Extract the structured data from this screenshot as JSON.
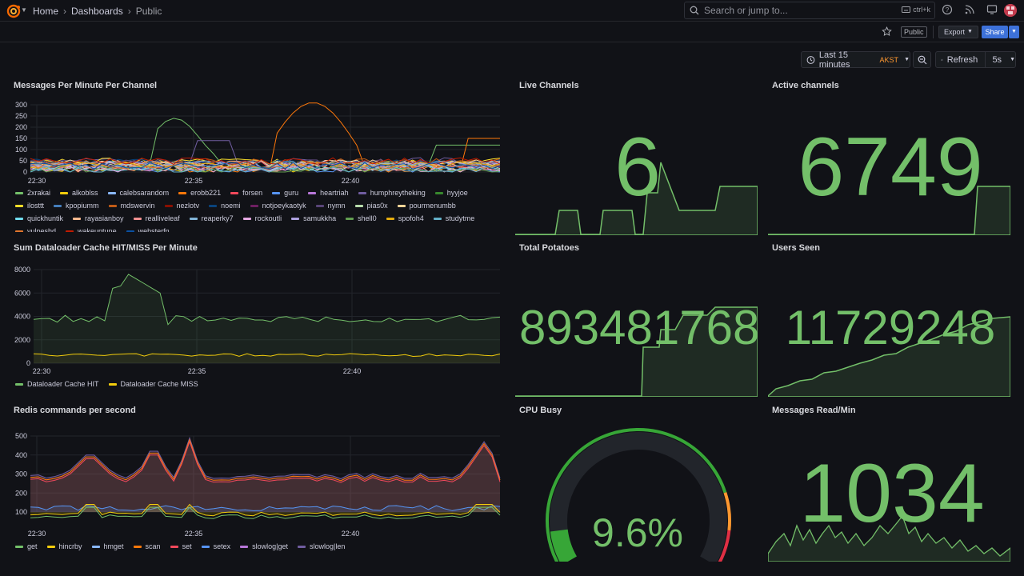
{
  "breadcrumb": {
    "home": "Home",
    "dashboards": "Dashboards",
    "current": "Public"
  },
  "search": {
    "placeholder": "Search or jump to...",
    "shortcut": "ctrl+k"
  },
  "topbar_icons": [
    "help-icon",
    "news-icon",
    "kiosk-icon"
  ],
  "actions": {
    "public_badge": "Public",
    "export_label": "Export",
    "share_label": "Share"
  },
  "timepicker": {
    "range": "Last 15 minutes",
    "timezone": "AKST",
    "refresh_label": "Refresh",
    "refresh_interval": "5s"
  },
  "colors": {
    "accent": "#3d71d9",
    "stat_green": "#73bf69",
    "bg": "#111217"
  },
  "panels": {
    "messages_per_minute": {
      "title": "Messages Per Minute Per Channel",
      "y_ticks": [
        "300",
        "250",
        "200",
        "150",
        "100",
        "50",
        "0"
      ],
      "x_ticks": [
        "22:30",
        "22:35",
        "22:40"
      ],
      "legend": [
        {
          "name": "2xrakai",
          "color": "#73bf69"
        },
        {
          "name": "alkoblss",
          "color": "#f2cc0c"
        },
        {
          "name": "calebsarandom",
          "color": "#8ab8ff"
        },
        {
          "name": "erobb221",
          "color": "#ff780a"
        },
        {
          "name": "forsen",
          "color": "#f2495c"
        },
        {
          "name": "guru",
          "color": "#5794f2"
        },
        {
          "name": "heartriah",
          "color": "#b877d9"
        },
        {
          "name": "humphreytheking",
          "color": "#705da0"
        },
        {
          "name": "hyyjoe",
          "color": "#37872d"
        },
        {
          "name": "ilosttt",
          "color": "#fade2a"
        },
        {
          "name": "kpopiumm",
          "color": "#447ebc"
        },
        {
          "name": "mdswervin",
          "color": "#c15c17"
        },
        {
          "name": "nezlotv",
          "color": "#890f02"
        },
        {
          "name": "noemi",
          "color": "#0a437c"
        },
        {
          "name": "notjoeykaotyk",
          "color": "#6d1f62"
        },
        {
          "name": "nymn",
          "color": "#584477"
        },
        {
          "name": "pias0x",
          "color": "#b7dbab"
        },
        {
          "name": "pourmenumbb",
          "color": "#f4d598"
        },
        {
          "name": "quickhuntik",
          "color": "#70dbed"
        },
        {
          "name": "rayasianboy",
          "color": "#f9ba8f"
        },
        {
          "name": "realliveleaf",
          "color": "#f29191"
        },
        {
          "name": "reaperky7",
          "color": "#82b5d8"
        },
        {
          "name": "rockoutli",
          "color": "#e5a8e2"
        },
        {
          "name": "samukkha",
          "color": "#aea2e0"
        },
        {
          "name": "shell0",
          "color": "#629e51"
        },
        {
          "name": "spofoh4",
          "color": "#e5ac0e"
        },
        {
          "name": "studytme",
          "color": "#64b0c8"
        },
        {
          "name": "vulpeshd",
          "color": "#e0752d"
        },
        {
          "name": "wakeuptune",
          "color": "#bf1b00"
        },
        {
          "name": "websterfn",
          "color": "#0a50a1"
        }
      ]
    },
    "live_channels": {
      "title": "Live Channels",
      "value": "6"
    },
    "active_channels": {
      "title": "Active channels",
      "value": "6749"
    },
    "dataloader": {
      "title": "Sum Dataloader Cache HIT/MISS Per Minute",
      "y_ticks": [
        "8000",
        "6000",
        "4000",
        "2000",
        "0"
      ],
      "x_ticks": [
        "22:30",
        "22:35",
        "22:40"
      ],
      "legend": [
        {
          "name": "Dataloader Cache HIT",
          "color": "#73bf69"
        },
        {
          "name": "Dataloader Cache MISS",
          "color": "#f2cc0c"
        }
      ]
    },
    "total_potatoes": {
      "title": "Total Potatoes",
      "value": "893481768"
    },
    "users_seen": {
      "title": "Users Seen",
      "value": "11729248"
    },
    "redis": {
      "title": "Redis commands per second",
      "y_ticks": [
        "500",
        "400",
        "300",
        "200",
        "100"
      ],
      "x_ticks": [
        "22:30",
        "22:35",
        "22:40"
      ],
      "legend": [
        {
          "name": "get",
          "color": "#73bf69"
        },
        {
          "name": "hincrby",
          "color": "#f2cc0c"
        },
        {
          "name": "hmget",
          "color": "#8ab8ff"
        },
        {
          "name": "scan",
          "color": "#ff780a"
        },
        {
          "name": "set",
          "color": "#f2495c"
        },
        {
          "name": "setex",
          "color": "#5794f2"
        },
        {
          "name": "slowlog|get",
          "color": "#b877d9"
        },
        {
          "name": "slowlog|len",
          "color": "#705da0"
        }
      ]
    },
    "cpu_busy": {
      "title": "CPU Busy",
      "value": "9.6%",
      "percent": 9.6
    },
    "messages_read": {
      "title": "Messages Read/Min",
      "value": "1034"
    }
  }
}
